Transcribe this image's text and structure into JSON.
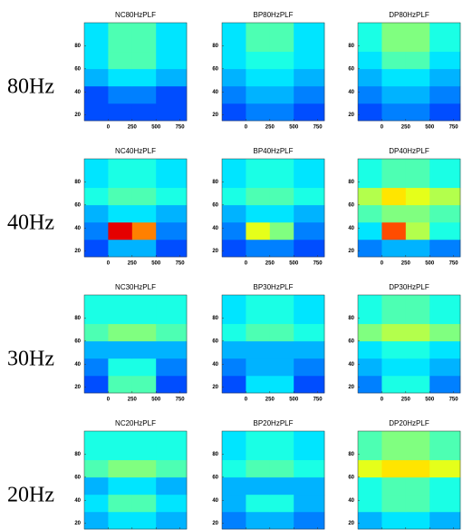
{
  "row_labels": [
    "80Hz",
    "40Hz",
    "30Hz",
    "20Hz"
  ],
  "chart_data": [
    {
      "type": "heatmap",
      "title": "NC80HzPLF",
      "xlim": [
        -250,
        820
      ],
      "ylim": [
        15,
        100
      ],
      "xticks": [
        0,
        250,
        500,
        750
      ],
      "yticks": [
        20,
        40,
        60,
        80
      ],
      "xbins": [
        -250,
        0,
        250,
        500,
        820
      ],
      "ybins": [
        15,
        30,
        45,
        60,
        75,
        100
      ],
      "values": [
        [
          0.2,
          0.2,
          0.2,
          0.2
        ],
        [
          0.2,
          0.25,
          0.25,
          0.2
        ],
        [
          0.3,
          0.35,
          0.35,
          0.3
        ],
        [
          0.35,
          0.45,
          0.45,
          0.35
        ],
        [
          0.35,
          0.45,
          0.45,
          0.35
        ]
      ]
    },
    {
      "type": "heatmap",
      "title": "BP80HzPLF",
      "xlim": [
        -250,
        820
      ],
      "ylim": [
        15,
        100
      ],
      "xticks": [
        0,
        250,
        500,
        750
      ],
      "yticks": [
        20,
        40,
        60,
        80
      ],
      "xbins": [
        -250,
        0,
        250,
        500,
        820
      ],
      "ybins": [
        15,
        30,
        45,
        60,
        75,
        100
      ],
      "values": [
        [
          0.2,
          0.25,
          0.25,
          0.2
        ],
        [
          0.25,
          0.3,
          0.3,
          0.25
        ],
        [
          0.3,
          0.35,
          0.35,
          0.3
        ],
        [
          0.35,
          0.4,
          0.4,
          0.35
        ],
        [
          0.35,
          0.45,
          0.45,
          0.35
        ]
      ]
    },
    {
      "type": "heatmap",
      "title": "DP80HzPLF",
      "xlim": [
        -250,
        820
      ],
      "ylim": [
        15,
        100
      ],
      "xticks": [
        0,
        250,
        500,
        750
      ],
      "yticks": [
        20,
        40,
        60,
        80
      ],
      "xbins": [
        -250,
        0,
        250,
        500,
        820
      ],
      "ybins": [
        15,
        30,
        45,
        60,
        75,
        100
      ],
      "values": [
        [
          0.2,
          0.25,
          0.25,
          0.2
        ],
        [
          0.25,
          0.3,
          0.3,
          0.25
        ],
        [
          0.3,
          0.35,
          0.35,
          0.3
        ],
        [
          0.35,
          0.45,
          0.45,
          0.35
        ],
        [
          0.4,
          0.5,
          0.5,
          0.4
        ]
      ]
    },
    {
      "type": "heatmap",
      "title": "NC40HzPLF",
      "xlim": [
        -250,
        820
      ],
      "ylim": [
        15,
        100
      ],
      "xticks": [
        0,
        250,
        500,
        750
      ],
      "yticks": [
        20,
        40,
        60,
        80
      ],
      "xbins": [
        -250,
        0,
        250,
        500,
        820
      ],
      "ybins": [
        15,
        30,
        45,
        60,
        75,
        100
      ],
      "values": [
        [
          0.2,
          0.3,
          0.3,
          0.2
        ],
        [
          0.25,
          0.9,
          0.75,
          0.25
        ],
        [
          0.3,
          0.35,
          0.35,
          0.3
        ],
        [
          0.4,
          0.45,
          0.45,
          0.4
        ],
        [
          0.35,
          0.4,
          0.4,
          0.35
        ]
      ]
    },
    {
      "type": "heatmap",
      "title": "BP40HzPLF",
      "xlim": [
        -250,
        820
      ],
      "ylim": [
        15,
        100
      ],
      "xticks": [
        0,
        250,
        500,
        750
      ],
      "yticks": [
        20,
        40,
        60,
        80
      ],
      "xbins": [
        -250,
        0,
        250,
        500,
        820
      ],
      "ybins": [
        15,
        30,
        45,
        60,
        75,
        100
      ],
      "values": [
        [
          0.2,
          0.25,
          0.25,
          0.2
        ],
        [
          0.25,
          0.6,
          0.5,
          0.25
        ],
        [
          0.3,
          0.35,
          0.35,
          0.3
        ],
        [
          0.4,
          0.45,
          0.45,
          0.4
        ],
        [
          0.35,
          0.4,
          0.4,
          0.35
        ]
      ]
    },
    {
      "type": "heatmap",
      "title": "DP40HzPLF",
      "xlim": [
        -250,
        820
      ],
      "ylim": [
        15,
        100
      ],
      "xticks": [
        0,
        250,
        500,
        750
      ],
      "yticks": [
        20,
        40,
        60,
        80
      ],
      "xbins": [
        -250,
        0,
        250,
        500,
        820
      ],
      "ybins": [
        15,
        30,
        45,
        60,
        75,
        100
      ],
      "values": [
        [
          0.25,
          0.3,
          0.3,
          0.25
        ],
        [
          0.35,
          0.8,
          0.55,
          0.4
        ],
        [
          0.45,
          0.5,
          0.5,
          0.45
        ],
        [
          0.55,
          0.65,
          0.6,
          0.55
        ],
        [
          0.4,
          0.45,
          0.45,
          0.4
        ]
      ]
    },
    {
      "type": "heatmap",
      "title": "NC30HzPLF",
      "xlim": [
        -250,
        820
      ],
      "ylim": [
        15,
        100
      ],
      "xticks": [
        0,
        250,
        500,
        750
      ],
      "yticks": [
        20,
        40,
        60,
        80
      ],
      "xbins": [
        -250,
        0,
        250,
        500,
        820
      ],
      "ybins": [
        15,
        30,
        45,
        60,
        75,
        100
      ],
      "values": [
        [
          0.2,
          0.45,
          0.45,
          0.2
        ],
        [
          0.25,
          0.4,
          0.4,
          0.25
        ],
        [
          0.3,
          0.3,
          0.3,
          0.3
        ],
        [
          0.45,
          0.5,
          0.5,
          0.45
        ],
        [
          0.4,
          0.4,
          0.4,
          0.4
        ]
      ]
    },
    {
      "type": "heatmap",
      "title": "BP30HzPLF",
      "xlim": [
        -250,
        820
      ],
      "ylim": [
        15,
        100
      ],
      "xticks": [
        0,
        250,
        500,
        750
      ],
      "yticks": [
        20,
        40,
        60,
        80
      ],
      "xbins": [
        -250,
        0,
        250,
        500,
        820
      ],
      "ybins": [
        15,
        30,
        45,
        60,
        75,
        100
      ],
      "values": [
        [
          0.2,
          0.35,
          0.35,
          0.2
        ],
        [
          0.25,
          0.3,
          0.3,
          0.25
        ],
        [
          0.3,
          0.3,
          0.3,
          0.3
        ],
        [
          0.4,
          0.45,
          0.45,
          0.4
        ],
        [
          0.35,
          0.4,
          0.4,
          0.35
        ]
      ]
    },
    {
      "type": "heatmap",
      "title": "DP30HzPLF",
      "xlim": [
        -250,
        820
      ],
      "ylim": [
        15,
        100
      ],
      "xticks": [
        0,
        250,
        500,
        750
      ],
      "yticks": [
        20,
        40,
        60,
        80
      ],
      "xbins": [
        -250,
        0,
        250,
        500,
        820
      ],
      "ybins": [
        15,
        30,
        45,
        60,
        75,
        100
      ],
      "values": [
        [
          0.25,
          0.4,
          0.4,
          0.25
        ],
        [
          0.3,
          0.35,
          0.35,
          0.3
        ],
        [
          0.35,
          0.4,
          0.4,
          0.35
        ],
        [
          0.5,
          0.55,
          0.55,
          0.5
        ],
        [
          0.4,
          0.45,
          0.45,
          0.4
        ]
      ]
    },
    {
      "type": "heatmap",
      "title": "NC20HzPLF",
      "xlim": [
        -250,
        820
      ],
      "ylim": [
        15,
        100
      ],
      "xticks": [
        0,
        250,
        500,
        750
      ],
      "yticks": [
        20,
        40,
        60,
        80
      ],
      "xbins": [
        -250,
        0,
        250,
        500,
        820
      ],
      "ybins": [
        15,
        30,
        45,
        60,
        75,
        100
      ],
      "values": [
        [
          0.3,
          0.35,
          0.35,
          0.3
        ],
        [
          0.35,
          0.45,
          0.45,
          0.35
        ],
        [
          0.3,
          0.35,
          0.35,
          0.3
        ],
        [
          0.45,
          0.5,
          0.5,
          0.45
        ],
        [
          0.4,
          0.4,
          0.4,
          0.4
        ]
      ]
    },
    {
      "type": "heatmap",
      "title": "BP20HzPLF",
      "xlim": [
        -250,
        820
      ],
      "ylim": [
        15,
        100
      ],
      "xticks": [
        0,
        250,
        500,
        750
      ],
      "yticks": [
        20,
        40,
        60,
        80
      ],
      "xbins": [
        -250,
        0,
        250,
        500,
        820
      ],
      "ybins": [
        15,
        30,
        45,
        60,
        75,
        100
      ],
      "values": [
        [
          0.25,
          0.3,
          0.3,
          0.25
        ],
        [
          0.3,
          0.4,
          0.4,
          0.3
        ],
        [
          0.3,
          0.3,
          0.3,
          0.3
        ],
        [
          0.4,
          0.45,
          0.45,
          0.4
        ],
        [
          0.35,
          0.4,
          0.4,
          0.35
        ]
      ]
    },
    {
      "type": "heatmap",
      "title": "DP20HzPLF",
      "xlim": [
        -250,
        820
      ],
      "ylim": [
        15,
        100
      ],
      "xticks": [
        0,
        250,
        500,
        750
      ],
      "yticks": [
        20,
        40,
        60,
        80
      ],
      "xbins": [
        -250,
        0,
        250,
        500,
        820
      ],
      "ybins": [
        15,
        30,
        45,
        60,
        75,
        100
      ],
      "values": [
        [
          0.3,
          0.35,
          0.35,
          0.3
        ],
        [
          0.4,
          0.45,
          0.45,
          0.4
        ],
        [
          0.4,
          0.45,
          0.45,
          0.4
        ],
        [
          0.6,
          0.65,
          0.65,
          0.6
        ],
        [
          0.45,
          0.5,
          0.5,
          0.45
        ]
      ]
    }
  ]
}
